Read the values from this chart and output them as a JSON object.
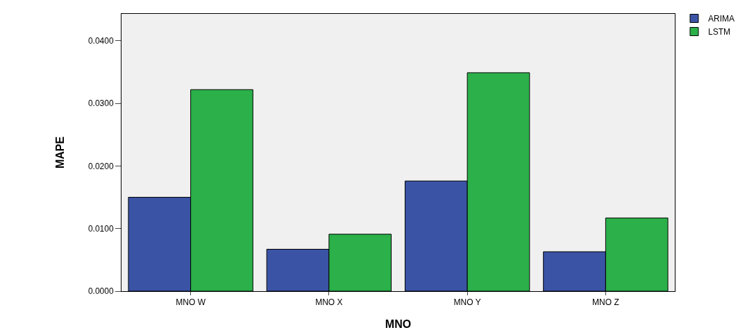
{
  "chart_data": {
    "type": "bar",
    "xlabel": "MNO",
    "ylabel": "MAPE",
    "categories": [
      "MNO W",
      "MNO X",
      "MNO Y",
      "MNO Z"
    ],
    "series": [
      {
        "name": "ARIMA",
        "color": "#3a53a4",
        "values": [
          0.015,
          0.0067,
          0.0176,
          0.0063
        ]
      },
      {
        "name": "LSTM",
        "color": "#2bb04a",
        "values": [
          0.0322,
          0.0091,
          0.0349,
          0.0117
        ]
      }
    ],
    "ylim": [
      0,
      0.0443
    ],
    "yticks": [
      {
        "value": 0,
        "label": "0.0000"
      },
      {
        "value": 0.01,
        "label": "0.0100"
      },
      {
        "value": 0.02,
        "label": "0.0200"
      },
      {
        "value": 0.03,
        "label": "0.0300"
      },
      {
        "value": 0.04,
        "label": "0.0400"
      }
    ],
    "grid": false,
    "legend": "top right"
  }
}
